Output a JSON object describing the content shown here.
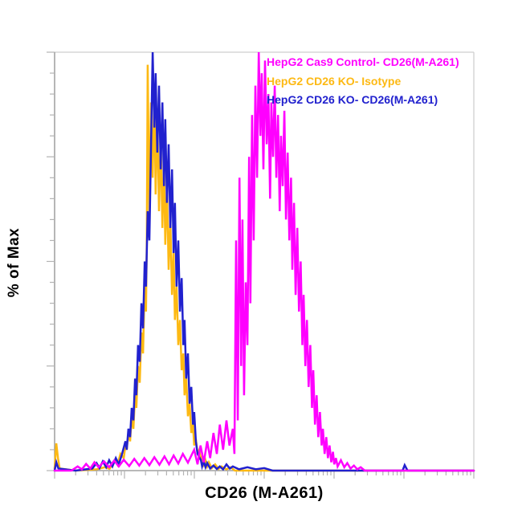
{
  "chart_data": {
    "type": "line",
    "subtype": "flow-cytometry-histogram-overlay",
    "title": "",
    "xlabel": "CD26 (M-A261)",
    "ylabel": "% of Max",
    "x_scale": "log",
    "x_decades": 6,
    "x_units": "fraction of x-axis width (log fluorescence intensity, no numeric tick labels shown)",
    "ylim": [
      0,
      100
    ],
    "y_tick_step_pct": 5,
    "y_major_tick_step_pct": 25,
    "grid": "off",
    "legend_position": "top-right-inside",
    "frame_colors": {
      "axis": "#8f8f8f",
      "frame_light": "#cfcfcf",
      "ticks": "#b3b3b3"
    },
    "draw_order": [
      1,
      2,
      0
    ],
    "series": [
      {
        "name": "HepG2 Cas9 Control- CD26(M-A261)",
        "color": "#FF00FF",
        "points": [
          [
            0,
            0
          ],
          [
            0.04,
            0
          ],
          [
            0.055,
            1
          ],
          [
            0.065,
            0.3
          ],
          [
            0.075,
            1.6
          ],
          [
            0.085,
            0.5
          ],
          [
            0.095,
            2
          ],
          [
            0.105,
            0.8
          ],
          [
            0.118,
            2.2
          ],
          [
            0.13,
            0.8
          ],
          [
            0.142,
            2.4
          ],
          [
            0.153,
            1
          ],
          [
            0.165,
            2.6
          ],
          [
            0.178,
            1.1
          ],
          [
            0.19,
            2.8
          ],
          [
            0.202,
            1.2
          ],
          [
            0.214,
            3
          ],
          [
            0.226,
            1.3
          ],
          [
            0.238,
            3.2
          ],
          [
            0.25,
            1.4
          ],
          [
            0.262,
            3.4
          ],
          [
            0.273,
            1.5
          ],
          [
            0.284,
            3.6
          ],
          [
            0.295,
            1.7
          ],
          [
            0.306,
            4
          ],
          [
            0.318,
            1.9
          ],
          [
            0.333,
            5
          ],
          [
            0.341,
            1.5
          ],
          [
            0.348,
            6
          ],
          [
            0.356,
            2
          ],
          [
            0.364,
            7
          ],
          [
            0.371,
            3
          ],
          [
            0.379,
            9
          ],
          [
            0.387,
            4
          ],
          [
            0.394,
            11
          ],
          [
            0.402,
            5
          ],
          [
            0.41,
            12
          ],
          [
            0.417,
            6
          ],
          [
            0.425,
            10
          ],
          [
            0.429,
            4
          ],
          [
            0.433,
            55
          ],
          [
            0.437,
            12
          ],
          [
            0.441,
            70
          ],
          [
            0.445,
            25
          ],
          [
            0.448,
            60
          ],
          [
            0.452,
            18
          ],
          [
            0.456,
            45
          ],
          [
            0.46,
            30
          ],
          [
            0.464,
            75
          ],
          [
            0.467,
            40
          ],
          [
            0.471,
            85
          ],
          [
            0.475,
            55
          ],
          [
            0.479,
            92
          ],
          [
            0.483,
            70
          ],
          [
            0.487,
            100
          ],
          [
            0.491,
            80
          ],
          [
            0.494,
            95
          ],
          [
            0.498,
            72
          ],
          [
            0.502,
            98
          ],
          [
            0.506,
            78
          ],
          [
            0.51,
            90
          ],
          [
            0.514,
            65
          ],
          [
            0.517,
            88
          ],
          [
            0.521,
            75
          ],
          [
            0.525,
            92
          ],
          [
            0.529,
            70
          ],
          [
            0.533,
            85
          ],
          [
            0.537,
            62
          ],
          [
            0.54,
            80
          ],
          [
            0.544,
            68
          ],
          [
            0.548,
            86
          ],
          [
            0.552,
            60
          ],
          [
            0.556,
            76
          ],
          [
            0.56,
            55
          ],
          [
            0.564,
            70
          ],
          [
            0.567,
            48
          ],
          [
            0.571,
            64
          ],
          [
            0.575,
            42
          ],
          [
            0.579,
            58
          ],
          [
            0.583,
            38
          ],
          [
            0.587,
            50
          ],
          [
            0.591,
            30
          ],
          [
            0.594,
            42
          ],
          [
            0.598,
            25
          ],
          [
            0.602,
            36
          ],
          [
            0.606,
            20
          ],
          [
            0.61,
            30
          ],
          [
            0.614,
            15
          ],
          [
            0.617,
            24
          ],
          [
            0.621,
            11
          ],
          [
            0.625,
            18
          ],
          [
            0.629,
            8
          ],
          [
            0.633,
            14
          ],
          [
            0.637,
            6
          ],
          [
            0.64,
            10
          ],
          [
            0.644,
            4
          ],
          [
            0.648,
            8
          ],
          [
            0.652,
            3
          ],
          [
            0.656,
            6
          ],
          [
            0.66,
            2
          ],
          [
            0.664,
            4.5
          ],
          [
            0.667,
            1.5
          ],
          [
            0.671,
            3
          ],
          [
            0.675,
            1
          ],
          [
            0.683,
            2.5
          ],
          [
            0.691,
            0.8
          ],
          [
            0.698,
            1.8
          ],
          [
            0.706,
            0.5
          ],
          [
            0.714,
            1.2
          ],
          [
            0.722,
            0.3
          ],
          [
            0.73,
            0.8
          ],
          [
            0.74,
            0
          ],
          [
            1,
            0
          ]
        ]
      },
      {
        "name": "HepG2 CD26 KO- Isotype",
        "color": "#FDB913",
        "points": [
          [
            0,
            0.5
          ],
          [
            0.004,
            6.5
          ],
          [
            0.008,
            3
          ],
          [
            0.012,
            0.5
          ],
          [
            0.05,
            0
          ],
          [
            0.1,
            0.3
          ],
          [
            0.12,
            0.8
          ],
          [
            0.131,
            0.4
          ],
          [
            0.138,
            1.5
          ],
          [
            0.146,
            2.5
          ],
          [
            0.15,
            1.5
          ],
          [
            0.157,
            4
          ],
          [
            0.165,
            3
          ],
          [
            0.169,
            6
          ],
          [
            0.172,
            5
          ],
          [
            0.176,
            9
          ],
          [
            0.18,
            7
          ],
          [
            0.184,
            13
          ],
          [
            0.188,
            10
          ],
          [
            0.192,
            18
          ],
          [
            0.195,
            15
          ],
          [
            0.199,
            25
          ],
          [
            0.203,
            21
          ],
          [
            0.207,
            33
          ],
          [
            0.211,
            28
          ],
          [
            0.215,
            45
          ],
          [
            0.218,
            38
          ],
          [
            0.22,
            55
          ],
          [
            0.222,
            97
          ],
          [
            0.226,
            60
          ],
          [
            0.23,
            88
          ],
          [
            0.234,
            70
          ],
          [
            0.238,
            90
          ],
          [
            0.241,
            66
          ],
          [
            0.245,
            85
          ],
          [
            0.249,
            62
          ],
          [
            0.253,
            80
          ],
          [
            0.257,
            58
          ],
          [
            0.261,
            74
          ],
          [
            0.264,
            54
          ],
          [
            0.268,
            68
          ],
          [
            0.272,
            48
          ],
          [
            0.276,
            60
          ],
          [
            0.28,
            42
          ],
          [
            0.284,
            52
          ],
          [
            0.287,
            36
          ],
          [
            0.291,
            44
          ],
          [
            0.295,
            30
          ],
          [
            0.299,
            36
          ],
          [
            0.303,
            24
          ],
          [
            0.307,
            28
          ],
          [
            0.31,
            18
          ],
          [
            0.314,
            22
          ],
          [
            0.318,
            13
          ],
          [
            0.322,
            16
          ],
          [
            0.326,
            9
          ],
          [
            0.33,
            11
          ],
          [
            0.333,
            6
          ],
          [
            0.337,
            7.5
          ],
          [
            0.341,
            4
          ],
          [
            0.345,
            5
          ],
          [
            0.349,
            2.5
          ],
          [
            0.352,
            3.5
          ],
          [
            0.356,
            1.5
          ],
          [
            0.36,
            2.5
          ],
          [
            0.364,
            1
          ],
          [
            0.368,
            2
          ],
          [
            0.375,
            0.6
          ],
          [
            0.383,
            1.5
          ],
          [
            0.391,
            0.4
          ],
          [
            0.398,
            1
          ],
          [
            0.41,
            0.3
          ],
          [
            0.42,
            0.8
          ],
          [
            0.43,
            0
          ],
          [
            1,
            0
          ]
        ]
      },
      {
        "name": "HepG2 CD26 KO- CD26(M-A261)",
        "color": "#2121CE",
        "points": [
          [
            0,
            0
          ],
          [
            0.004,
            2
          ],
          [
            0.009,
            0.5
          ],
          [
            0.05,
            0
          ],
          [
            0.09,
            0.5
          ],
          [
            0.1,
            1.8
          ],
          [
            0.107,
            0.6
          ],
          [
            0.115,
            2.2
          ],
          [
            0.123,
            0.8
          ],
          [
            0.13,
            2.5
          ],
          [
            0.138,
            1
          ],
          [
            0.146,
            3
          ],
          [
            0.153,
            1.5
          ],
          [
            0.161,
            4
          ],
          [
            0.169,
            7
          ],
          [
            0.172,
            5
          ],
          [
            0.176,
            10
          ],
          [
            0.18,
            8
          ],
          [
            0.184,
            15
          ],
          [
            0.188,
            12
          ],
          [
            0.192,
            22
          ],
          [
            0.195,
            18
          ],
          [
            0.199,
            30
          ],
          [
            0.203,
            26
          ],
          [
            0.207,
            40
          ],
          [
            0.211,
            34
          ],
          [
            0.215,
            50
          ],
          [
            0.218,
            44
          ],
          [
            0.222,
            62
          ],
          [
            0.226,
            55
          ],
          [
            0.23,
            78
          ],
          [
            0.234,
            100
          ],
          [
            0.238,
            82
          ],
          [
            0.241,
            95
          ],
          [
            0.245,
            76
          ],
          [
            0.249,
            92
          ],
          [
            0.253,
            72
          ],
          [
            0.257,
            88
          ],
          [
            0.261,
            68
          ],
          [
            0.264,
            84
          ],
          [
            0.268,
            64
          ],
          [
            0.272,
            78
          ],
          [
            0.276,
            58
          ],
          [
            0.28,
            72
          ],
          [
            0.284,
            52
          ],
          [
            0.287,
            64
          ],
          [
            0.291,
            44
          ],
          [
            0.295,
            55
          ],
          [
            0.299,
            38
          ],
          [
            0.303,
            46
          ],
          [
            0.307,
            30
          ],
          [
            0.31,
            36
          ],
          [
            0.314,
            22
          ],
          [
            0.318,
            28
          ],
          [
            0.322,
            16
          ],
          [
            0.326,
            20
          ],
          [
            0.33,
            11
          ],
          [
            0.333,
            14
          ],
          [
            0.337,
            7
          ],
          [
            0.341,
            4
          ],
          [
            0.349,
            2.5
          ],
          [
            0.352,
            1
          ],
          [
            0.356,
            2.2
          ],
          [
            0.36,
            0.8
          ],
          [
            0.364,
            1.8
          ],
          [
            0.371,
            0.5
          ],
          [
            0.379,
            1.2
          ],
          [
            0.387,
            0.4
          ],
          [
            0.394,
            1
          ],
          [
            0.402,
            0.3
          ],
          [
            0.41,
            1.5
          ],
          [
            0.418,
            0.5
          ],
          [
            0.425,
            1
          ],
          [
            0.44,
            0.3
          ],
          [
            0.46,
            0.8
          ],
          [
            0.48,
            0.3
          ],
          [
            0.5,
            0.6
          ],
          [
            0.52,
            0
          ],
          [
            0.83,
            0
          ],
          [
            0.835,
            1.3
          ],
          [
            0.842,
            0
          ],
          [
            1,
            0
          ]
        ]
      }
    ]
  },
  "legend": {
    "items": [
      {
        "label": "HepG2 Cas9 Control- CD26(M-A261)",
        "color": "#FF00FF"
      },
      {
        "label": "HepG2 CD26 KO- Isotype",
        "color": "#FDB913"
      },
      {
        "label": "HepG2 CD26 KO- CD26(M-A261)",
        "color": "#2121CE"
      }
    ]
  }
}
